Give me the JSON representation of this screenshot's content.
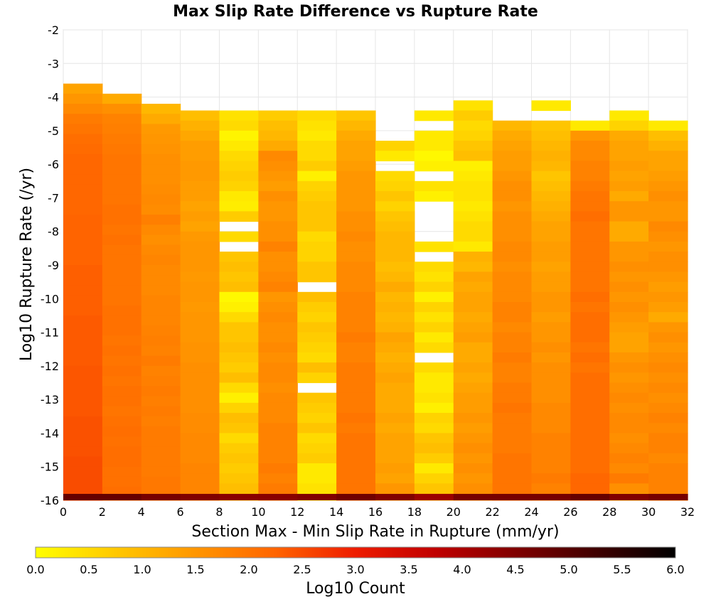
{
  "chart_data": {
    "type": "heatmap",
    "title": "Max Slip Rate Difference vs Rupture Rate",
    "xlabel": "Section Max - Min Slip Rate in Rupture (mm/yr)",
    "ylabel": "Log10 Rupture Rate (/yr)",
    "xlim": [
      0,
      32
    ],
    "ylim": [
      -16,
      -2
    ],
    "x_ticks": [
      "0",
      "2",
      "4",
      "6",
      "8",
      "10",
      "12",
      "14",
      "16",
      "18",
      "20",
      "22",
      "24",
      "26",
      "28",
      "30",
      "32"
    ],
    "y_ticks": [
      "-2",
      "-3",
      "-4",
      "-5",
      "-6",
      "-7",
      "-8",
      "-9",
      "-10",
      "-11",
      "-12",
      "-13",
      "-14",
      "-15",
      "-16"
    ],
    "x_bin_width": 2,
    "y_bin_height": 0.3,
    "grid": true,
    "colorbar": {
      "label": "Log10 Count",
      "ticks": [
        "0.0",
        "0.5",
        "1.0",
        "1.5",
        "2.0",
        "2.5",
        "3.0",
        "3.5",
        "4.0",
        "4.5",
        "5.0",
        "5.5",
        "6.0"
      ],
      "range": [
        0,
        6
      ],
      "stops": [
        "#ffff00",
        "#ffc800",
        "#ff9600",
        "#ff6400",
        "#ee1c00",
        "#c00000",
        "#800000",
        "#400000",
        "#000000"
      ]
    },
    "columns": [
      {
        "x": 1,
        "top": -3.6,
        "v": [
          1.3,
          1.5,
          1.7,
          1.9,
          2.0,
          2.1,
          2.15,
          2.2,
          2.2,
          2.2,
          2.2,
          2.2,
          2.2,
          2.25,
          2.25,
          2.25,
          2.25,
          2.25,
          2.3,
          2.3,
          2.3,
          2.3,
          2.3,
          2.35,
          2.35,
          2.35,
          2.35,
          2.35,
          2.4,
          2.4,
          2.4,
          2.4,
          2.4,
          2.45,
          2.45,
          2.45,
          2.45,
          2.5,
          2.5,
          2.5,
          2.5,
          2.5,
          2.55,
          2.55
        ]
      },
      {
        "x": 3,
        "top": -3.9,
        "v": [
          1.2,
          1.6,
          1.8,
          1.85,
          1.9,
          1.95,
          2.0,
          2.0,
          2.0,
          2.0,
          2.0,
          2.05,
          2.05,
          2.0,
          2.05,
          2.0,
          2.0,
          2.0,
          2.0,
          2.0,
          2.0,
          2.05,
          2.05,
          2.05,
          2.0,
          2.05,
          2.0,
          2.05,
          2.0,
          2.05,
          2.05,
          2.0,
          2.05,
          2.1,
          2.05,
          2.1,
          2.1,
          2.05,
          2.05,
          2.1,
          2.1,
          2.1,
          2.1
        ]
      },
      {
        "x": 5,
        "top": -4.2,
        "v": [
          1.0,
          1.2,
          1.45,
          1.5,
          1.55,
          1.6,
          1.6,
          1.6,
          1.65,
          1.7,
          1.65,
          1.85,
          1.7,
          1.6,
          1.7,
          1.75,
          1.7,
          1.7,
          1.7,
          1.75,
          1.75,
          1.75,
          1.8,
          1.85,
          1.8,
          1.9,
          1.8,
          1.85,
          1.9,
          1.85,
          1.9,
          1.85,
          1.9,
          1.9,
          1.9,
          1.9,
          1.9,
          1.95,
          1.95,
          1.95,
          1.95,
          1.95
        ]
      },
      {
        "x": 7,
        "top": -4.4,
        "v": [
          0.9,
          1.1,
          1.25,
          1.4,
          1.4,
          1.45,
          1.45,
          1.4,
          1.4,
          1.3,
          1.4,
          1.3,
          1.45,
          1.5,
          1.5,
          1.5,
          1.45,
          1.5,
          1.5,
          1.45,
          1.5,
          1.5,
          1.5,
          1.55,
          1.55,
          1.6,
          1.6,
          1.6,
          1.6,
          1.6,
          1.65,
          1.65,
          1.7,
          1.7,
          1.7,
          1.75,
          1.75,
          1.75,
          1.8,
          1.85,
          1.8
        ]
      },
      {
        "x": 9,
        "top": -4.4,
        "v": [
          0.4,
          0.5,
          0.15,
          0.3,
          0.5,
          0.6,
          0.7,
          0.6,
          0.3,
          0.25,
          0.7,
          null,
          0.5,
          null,
          0.8,
          0.9,
          0.8,
          0.9,
          0.1,
          0.2,
          0.5,
          0.8,
          0.8,
          0.9,
          0.8,
          0.7,
          0.9,
          0.5,
          0.2,
          0.6,
          0.9,
          0.8,
          0.5,
          0.7,
          0.8,
          0.7,
          0.8,
          0.9,
          0.9,
          1.0,
          1.1,
          0.6
        ]
      },
      {
        "x": 11,
        "top": -4.4,
        "v": [
          0.7,
          0.9,
          1.0,
          1.2,
          1.7,
          1.6,
          1.5,
          1.4,
          1.6,
          1.5,
          1.5,
          1.6,
          1.6,
          1.8,
          1.6,
          1.6,
          1.7,
          1.8,
          1.5,
          1.6,
          1.7,
          1.6,
          1.6,
          1.7,
          1.6,
          1.7,
          1.7,
          1.6,
          1.7,
          1.7,
          1.7,
          1.8,
          1.8,
          1.8,
          1.8,
          1.9,
          1.8,
          1.9,
          1.8,
          1.9,
          1.8,
          1.9
        ]
      },
      {
        "x": 13,
        "top": -4.4,
        "v": [
          0.5,
          0.4,
          0.3,
          0.5,
          0.5,
          0.7,
          0.2,
          0.6,
          0.7,
          0.8,
          0.8,
          0.8,
          0.5,
          0.6,
          0.6,
          0.8,
          0.8,
          null,
          0.9,
          0.7,
          0.6,
          0.8,
          0.7,
          0.6,
          0.5,
          0.9,
          0.6,
          null,
          0.8,
          0.7,
          0.6,
          0.8,
          0.5,
          0.6,
          0.7,
          0.3,
          0.3,
          0.4,
          0.3,
          0.6,
          0.9,
          1.1
        ]
      },
      {
        "x": 15,
        "top": -4.4,
        "v": [
          0.8,
          1.0,
          1.2,
          1.3,
          1.3,
          1.4,
          1.5,
          1.5,
          1.5,
          1.5,
          1.6,
          1.6,
          1.7,
          1.6,
          1.6,
          1.7,
          1.7,
          1.7,
          1.8,
          1.8,
          1.8,
          1.8,
          1.9,
          1.8,
          1.8,
          1.9,
          1.9,
          1.9,
          1.9,
          1.9,
          2.0,
          1.9,
          2.0,
          2.0,
          2.0,
          2.0,
          2.0,
          2.0,
          2.0,
          2.0,
          2.0,
          2.0
        ]
      },
      {
        "x": 17,
        "top": -5.3,
        "v": [
          0.6,
          0.3,
          null,
          0.5,
          0.6,
          0.8,
          0.6,
          0.8,
          0.9,
          1.0,
          1.0,
          1.0,
          0.9,
          1.0,
          1.2,
          1.0,
          1.1,
          1.0,
          1.1,
          1.3,
          1.2,
          1.1,
          1.2,
          1.3,
          1.2,
          1.2,
          1.2,
          1.3,
          1.2,
          1.3,
          1.3,
          1.3,
          1.4,
          1.3,
          1.5,
          1.4
        ]
      },
      {
        "x": 19,
        "top": -4.4,
        "v": [
          0.3,
          null,
          0.3,
          0.3,
          0.1,
          0.2,
          null,
          0.4,
          0.2,
          null,
          null,
          null,
          null,
          0.4,
          null,
          0.5,
          0.4,
          0.6,
          0.2,
          0.6,
          0.4,
          0.6,
          0.3,
          0.5,
          null,
          0.5,
          0.3,
          0.3,
          0.4,
          0.2,
          0.6,
          0.5,
          0.8,
          0.9,
          0.7,
          0.3,
          0.6,
          0.8,
          1.0,
          0.4,
          0.5,
          0.1
        ]
      },
      {
        "x": 21,
        "top": -4.1,
        "v": [
          0.4,
          0.7,
          0.5,
          0.6,
          0.8,
          0.9,
          0.2,
          0.3,
          0.4,
          0.4,
          0.3,
          0.4,
          0.5,
          0.5,
          0.3,
          1.1,
          1.0,
          1.3,
          1.2,
          1.3,
          1.3,
          1.2,
          1.3,
          1.4,
          1.2,
          1.2,
          1.3,
          1.2,
          1.3,
          1.4,
          1.4,
          1.5,
          1.4,
          1.5,
          1.6,
          1.5,
          1.6,
          1.5,
          1.6,
          1.6,
          1.7,
          1.6,
          1.7
        ]
      },
      {
        "x": 23,
        "top": -4.7,
        "v": [
          1.0,
          1.2,
          1.3,
          1.4,
          1.4,
          1.5,
          1.6,
          1.6,
          1.5,
          1.6,
          1.6,
          1.6,
          1.7,
          1.7,
          1.6,
          1.7,
          1.7,
          1.7,
          1.8,
          1.8,
          1.7,
          1.8,
          1.8,
          1.9,
          1.8,
          1.8,
          1.9,
          1.9,
          2.0,
          1.9,
          1.9,
          1.9,
          1.9,
          2.0,
          2.0,
          2.0,
          2.0,
          2.0,
          2.0,
          2.0,
          2.0
        ]
      },
      {
        "x": 25,
        "top": -4.1,
        "v": [
          0.3,
          null,
          0.8,
          0.9,
          1.0,
          1.1,
          1.0,
          0.8,
          0.9,
          1.0,
          1.1,
          1.2,
          1.3,
          1.3,
          1.4,
          1.4,
          1.3,
          1.4,
          1.4,
          1.5,
          1.5,
          1.4,
          1.5,
          1.5,
          1.6,
          1.5,
          1.6,
          1.6,
          1.6,
          1.6,
          1.7,
          1.7,
          1.7,
          1.8,
          1.8,
          1.8,
          1.8,
          1.9,
          1.8,
          1.9,
          1.9,
          1.9,
          1.9
        ]
      },
      {
        "x": 27,
        "top": -4.7,
        "v": [
          0.3,
          1.5,
          1.7,
          1.7,
          1.8,
          1.8,
          1.9,
          2.0,
          2.0,
          2.1,
          2.0,
          2.0,
          2.0,
          2.0,
          2.0,
          2.0,
          2.0,
          2.1,
          2.0,
          2.1,
          2.1,
          2.1,
          2.0,
          2.1,
          2.0,
          2.1,
          2.1,
          2.1,
          2.1,
          2.1,
          2.1,
          2.1,
          2.1,
          2.1,
          2.1,
          2.2,
          2.2,
          2.2,
          2.2,
          2.2,
          2.2
        ]
      },
      {
        "x": 29,
        "top": -4.4,
        "v": [
          0.3,
          0.6,
          1.2,
          1.3,
          1.3,
          1.4,
          1.3,
          1.4,
          1.2,
          1.5,
          1.5,
          1.2,
          1.2,
          1.5,
          1.5,
          1.6,
          1.5,
          1.6,
          1.5,
          1.6,
          1.5,
          1.4,
          1.3,
          1.3,
          1.5,
          1.6,
          1.5,
          1.6,
          1.7,
          1.6,
          1.7,
          1.7,
          1.6,
          1.7,
          1.8,
          1.7,
          1.9,
          1.6,
          1.1,
          1.8,
          1.8,
          1.9
        ]
      },
      {
        "x": 31,
        "top": -4.7,
        "v": [
          0.3,
          0.9,
          1.1,
          1.3,
          1.3,
          1.4,
          1.5,
          1.6,
          1.5,
          1.5,
          1.7,
          1.6,
          1.5,
          1.6,
          1.6,
          1.5,
          1.4,
          1.5,
          1.4,
          1.2,
          1.5,
          1.6,
          1.5,
          1.6,
          1.7,
          1.6,
          1.7,
          1.6,
          1.7,
          1.8,
          1.7,
          1.8,
          1.8,
          1.7,
          1.8,
          1.8,
          1.8,
          1.8,
          1.8,
          1.8,
          1.8
        ]
      }
    ],
    "bottom_row": {
      "y": -15.95,
      "v": [
        4.8,
        4.8,
        4.6,
        4.5,
        4.4,
        4.4,
        4.5,
        4.7,
        4.5,
        4.2,
        4.6,
        4.6,
        4.6,
        4.8,
        4.5,
        4.6
      ]
    }
  }
}
